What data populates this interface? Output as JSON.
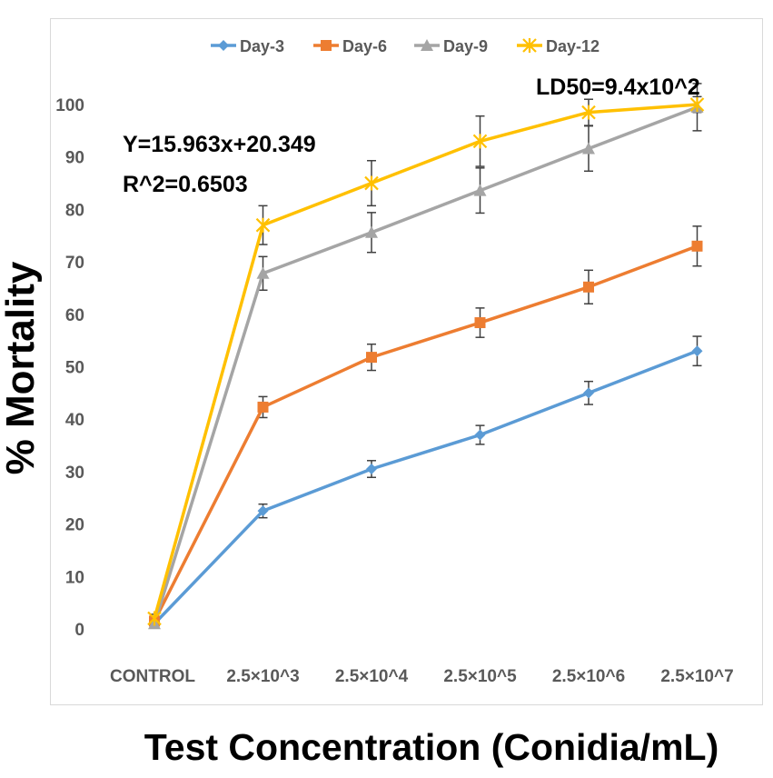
{
  "chart_data": {
    "type": "line",
    "title": "",
    "xlabel": "Test Concentration (Conidia/mL)",
    "ylabel": "% Mortality",
    "categories": [
      "CONTROL",
      "2.5×10^3",
      "2.5×10^4",
      "2.5×10^5",
      "2.5×10^6",
      "2.5×10^7"
    ],
    "ylim": [
      0,
      100
    ],
    "yticks": [
      0,
      10,
      20,
      30,
      40,
      50,
      60,
      70,
      80,
      90,
      100
    ],
    "grid": false,
    "legend": "top",
    "series": [
      {
        "name": "Day-3",
        "color": "#5b9bd5",
        "marker": "diamond",
        "values": [
          1,
          22.5,
          30.5,
          37,
          45,
          53
        ],
        "errors": [
          0.8,
          1.3,
          1.6,
          1.8,
          2.2,
          2.8
        ]
      },
      {
        "name": "Day-6",
        "color": "#ed7d31",
        "marker": "square",
        "values": [
          1.5,
          42.3,
          51.8,
          58.4,
          65.2,
          73
        ],
        "errors": [
          0.8,
          2.0,
          2.5,
          2.8,
          3.2,
          3.8
        ]
      },
      {
        "name": "Day-9",
        "color": "#a5a5a5",
        "marker": "triangle",
        "values": [
          1,
          67.8,
          75.6,
          83.6,
          91.6,
          99.5
        ],
        "errors": [
          0.8,
          3.2,
          3.8,
          4.3,
          4.3,
          4.5
        ]
      },
      {
        "name": "Day-12",
        "color": "#ffc000",
        "marker": "star",
        "values": [
          2,
          77,
          85,
          93,
          98.5,
          100
        ],
        "errors": [
          0.8,
          3.7,
          4.3,
          4.8,
          2.5,
          1.5
        ]
      }
    ],
    "annotations": [
      {
        "id": "equation",
        "text": "Y=15.963x+20.349"
      },
      {
        "id": "r-squared",
        "text": "R^2=0.6503"
      },
      {
        "id": "ld50",
        "text": "LD50=9.4x10^2"
      }
    ]
  }
}
